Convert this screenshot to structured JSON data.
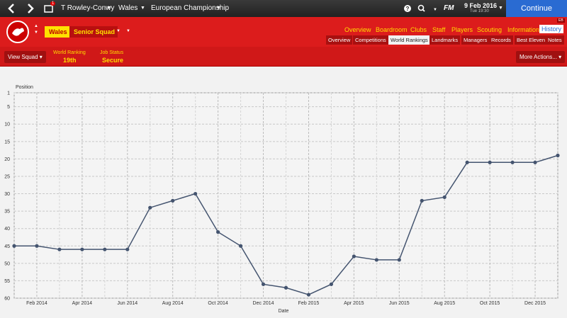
{
  "top_bar": {
    "notification": "1",
    "manager": "T Rowley-Conwy",
    "team": "Wales",
    "competition": "European Championship",
    "fm": "FM",
    "date": "9 Feb 2016",
    "time": "Tue 19:30",
    "continue": "Continue"
  },
  "header": {
    "team_tab": "Wales",
    "squad_tab": "Senior Squad",
    "badge": "EB",
    "nav": [
      "Overview",
      "Boardroom",
      "Clubs",
      "Staff",
      "Players",
      "Scouting",
      "Information",
      "History"
    ],
    "subnav": [
      "Overview",
      "Competitions",
      "World Rankings",
      "Landmarks",
      "Managers",
      "Records",
      "Best Eleven",
      "Notes"
    ]
  },
  "toolbar": {
    "view_squad": "View Squad",
    "world_ranking_label": "World Ranking",
    "world_ranking": "19th",
    "job_status_label": "Job Status",
    "job_status": "Secure",
    "more_actions": "More Actions..."
  },
  "chart_data": {
    "type": "line",
    "y_label": "Position",
    "x_label": "Date",
    "color": "#44546f",
    "grid": true,
    "categories": [
      null,
      "Feb 2014",
      null,
      "Apr 2014",
      null,
      "Jun 2014",
      null,
      "Aug 2014",
      null,
      "Oct 2014",
      null,
      "Dec 2014",
      null,
      "Feb 2015",
      null,
      "Apr 2015",
      null,
      "Jun 2015",
      null,
      "Aug 2015",
      null,
      "Oct 2015",
      null,
      "Dec 2015",
      null
    ],
    "values": [
      45,
      45,
      46,
      46,
      46,
      46,
      34,
      32,
      30,
      41,
      45,
      56,
      57,
      59,
      56,
      48,
      49,
      49,
      32,
      31,
      21,
      21,
      21,
      21,
      19
    ],
    "ylim": [
      60,
      1
    ],
    "yticks": [
      1,
      5,
      10,
      15,
      20,
      25,
      30,
      35,
      40,
      45,
      50,
      55,
      60
    ]
  }
}
